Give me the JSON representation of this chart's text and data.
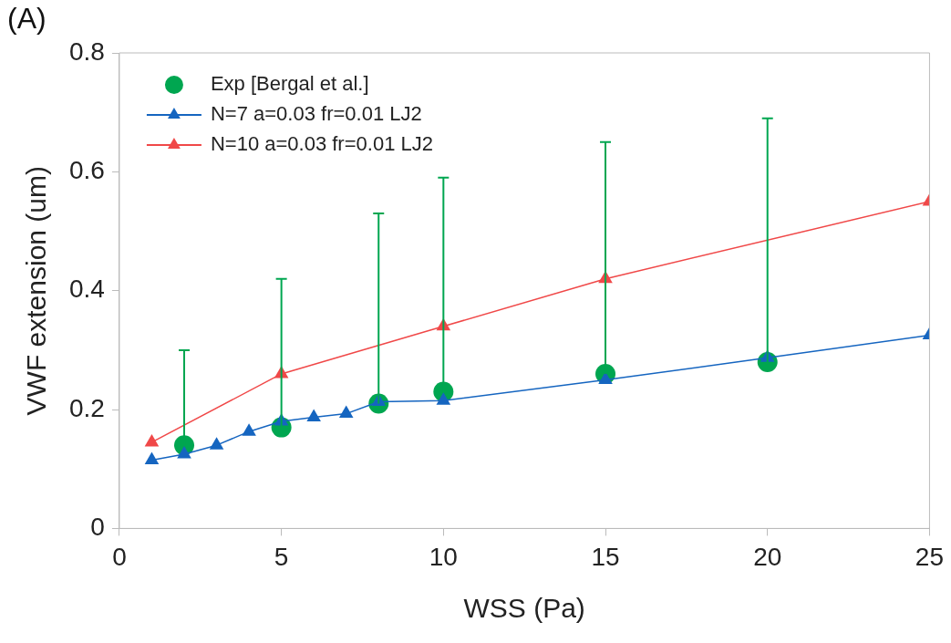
{
  "chart_data": {
    "type": "line",
    "xlabel": "WSS (Pa)",
    "ylabel": "VWF extension (um)",
    "annotations": [
      "(A)"
    ],
    "xlim": [
      0,
      25
    ],
    "xticks": [
      0,
      5,
      10,
      15,
      20,
      25
    ],
    "ylim": [
      0,
      0.8
    ],
    "yticks": [
      0,
      0.2,
      0.4,
      0.6,
      0.8
    ],
    "grid": false,
    "legend": "top left",
    "series": [
      {
        "name": "Exp [Bergal et al.]",
        "type": "scatter",
        "marker": "circle",
        "color": "#00a650",
        "x": [
          2,
          5,
          8,
          10,
          15,
          20
        ],
        "values": [
          0.14,
          0.17,
          0.21,
          0.23,
          0.26,
          0.28
        ],
        "errors": [
          [
            0.14,
            0.3
          ],
          [
            0.17,
            0.42
          ],
          [
            0.21,
            0.53
          ],
          [
            0.23,
            0.59
          ],
          [
            0.26,
            0.65
          ],
          [
            0.28,
            0.69
          ]
        ]
      },
      {
        "name": "N=7 a=0.03 fr=0.01 LJ2",
        "type": "line",
        "marker": "triangle",
        "color": "#1565c0",
        "x": [
          1,
          2,
          3,
          4,
          5,
          6,
          7,
          8,
          10,
          15,
          20,
          25
        ],
        "values": [
          0.115,
          0.125,
          0.14,
          0.163,
          0.18,
          0.187,
          0.193,
          0.213,
          0.215,
          0.25,
          0.287,
          0.325
        ]
      },
      {
        "name": "N=10 a=0.03 fr=0.01 LJ2",
        "type": "line",
        "marker": "triangle",
        "color": "#f04848",
        "x": [
          1,
          5,
          10,
          15,
          25
        ],
        "values": [
          0.145,
          0.26,
          0.34,
          0.42,
          0.55
        ]
      }
    ]
  }
}
